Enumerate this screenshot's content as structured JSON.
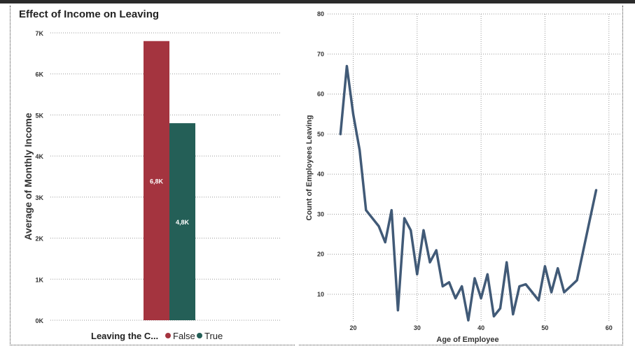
{
  "chart_data": [
    {
      "type": "bar",
      "title": "Effect of Income on Leaving",
      "ylabel": "Average of Monthly Income",
      "xlabel": "",
      "ylim": [
        0,
        7000
      ],
      "yticks": [
        {
          "value": 0,
          "label": "0K"
        },
        {
          "value": 1000,
          "label": "1K"
        },
        {
          "value": 2000,
          "label": "2K"
        },
        {
          "value": 3000,
          "label": "3K"
        },
        {
          "value": 4000,
          "label": "4K"
        },
        {
          "value": 5000,
          "label": "5K"
        },
        {
          "value": 6000,
          "label": "6K"
        },
        {
          "value": 7000,
          "label": "7K"
        }
      ],
      "legend": {
        "title": "Leaving the C...",
        "position": "bottom",
        "items": [
          {
            "name": "False",
            "color": "#a4343f"
          },
          {
            "name": "True",
            "color": "#245f57"
          }
        ]
      },
      "series": [
        {
          "name": "False",
          "value": 6800,
          "data_label": "6,8K",
          "color": "#a4343f"
        },
        {
          "name": "True",
          "value": 4800,
          "data_label": "4,8K",
          "color": "#245f57"
        }
      ],
      "grid": true
    },
    {
      "type": "line",
      "title": "",
      "xlabel": "Age of Employee",
      "ylabel": "Count of Employees Leaving",
      "xlim": [
        16,
        62
      ],
      "ylim": [
        3,
        80
      ],
      "xticks": [
        20,
        30,
        40,
        50,
        60
      ],
      "yticks": [
        10,
        20,
        30,
        40,
        50,
        60,
        70,
        80
      ],
      "color": "#415a77",
      "grid": true,
      "x": [
        18,
        19,
        20,
        21,
        22,
        23,
        24,
        25,
        26,
        27,
        28,
        29,
        30,
        31,
        32,
        33,
        34,
        35,
        36,
        37,
        38,
        39,
        40,
        41,
        42,
        43,
        44,
        45,
        46,
        47,
        48,
        49,
        50,
        51,
        52,
        53,
        54,
        55,
        56,
        57,
        58
      ],
      "y": [
        50,
        67,
        55,
        46,
        31,
        29,
        27,
        23,
        31,
        6,
        29,
        26,
        15,
        26,
        18,
        21,
        12,
        13,
        9,
        12,
        3.5,
        14,
        9,
        15,
        4.5,
        6.5,
        18,
        5,
        12,
        12.5,
        10.5,
        8.5,
        17,
        10.5,
        16.5,
        10.5,
        12,
        13.5,
        21,
        28.5,
        36
      ]
    }
  ]
}
